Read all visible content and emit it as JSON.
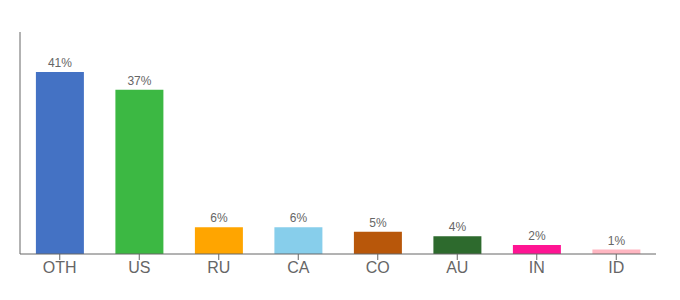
{
  "chart_data": {
    "type": "bar",
    "categories": [
      "OTH",
      "US",
      "RU",
      "CA",
      "CO",
      "AU",
      "IN",
      "ID"
    ],
    "values": [
      41,
      37,
      6,
      6,
      5,
      4,
      2,
      1
    ],
    "value_labels": [
      "41%",
      "37%",
      "6%",
      "6%",
      "5%",
      "4%",
      "2%",
      "1%"
    ],
    "colors": [
      "#4472C4",
      "#3CB843",
      "#FFA500",
      "#87CEEB",
      "#B8570A",
      "#2D6A2D",
      "#FF1493",
      "#FFB6C1"
    ],
    "ylim": [
      0,
      50
    ],
    "tick_labels": "x",
    "data_labels": true,
    "grid": false
  }
}
